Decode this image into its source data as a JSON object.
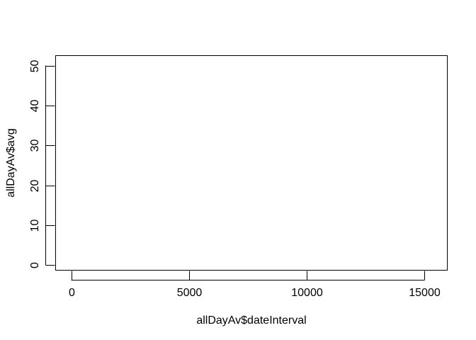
{
  "chart_data": {
    "type": "line",
    "title": "",
    "xlabel": "allDayAv$dateInterval",
    "ylabel": "allDayAv$avg",
    "x_ticks": [
      0,
      5000,
      10000,
      15000
    ],
    "x_tick_labels": [
      "0",
      "5000",
      "10000",
      "15000"
    ],
    "y_ticks": [
      0,
      10,
      20,
      30,
      40,
      50
    ],
    "y_tick_labels": [
      "0",
      "10",
      "20",
      "30",
      "40",
      "50"
    ],
    "xlim": [
      -650,
      15950
    ],
    "ylim": [
      -1.2,
      52.4
    ],
    "grid": false,
    "legend": "none",
    "series": [],
    "colors": {
      "axis": "#000000",
      "background": "#ffffff"
    }
  }
}
